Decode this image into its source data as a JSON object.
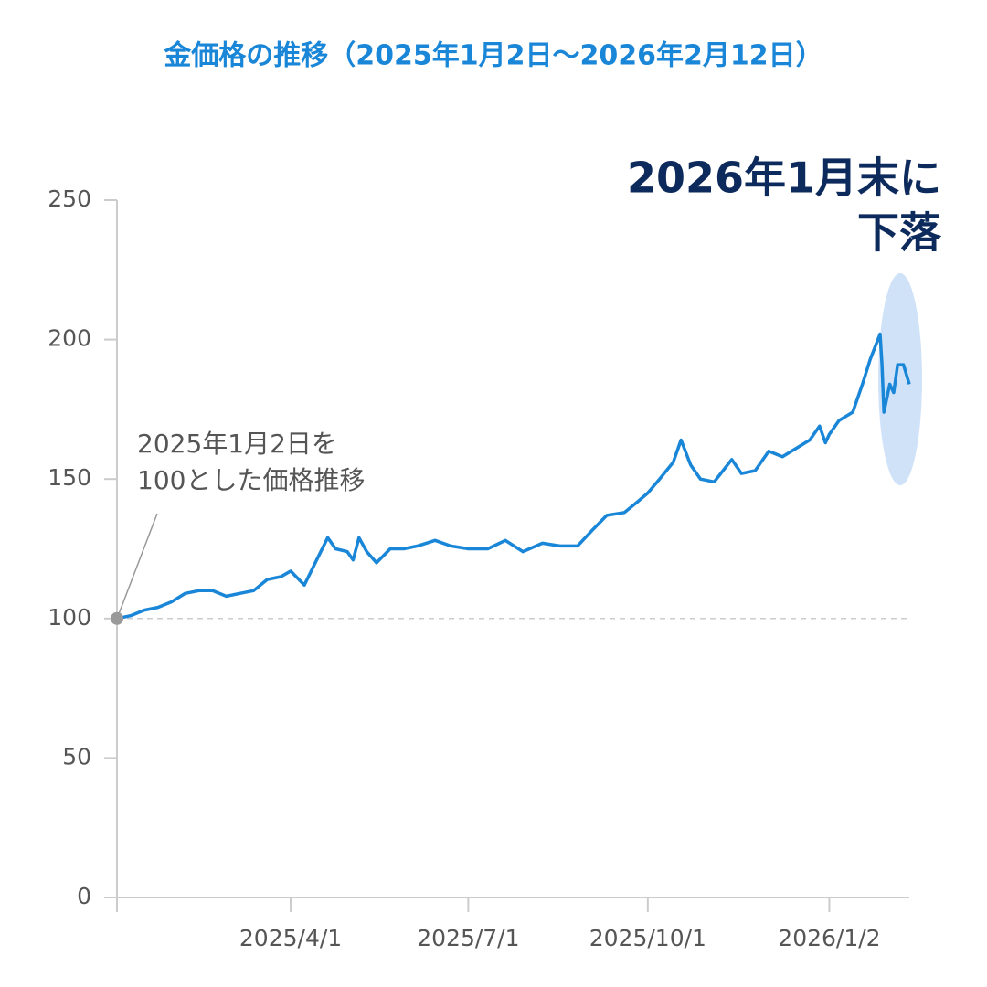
{
  "chart_data": {
    "type": "line",
    "title": "金価格の推移（2025年1月2日～2026年2月12日）",
    "annotation": [
      "2026年1月末に",
      "下落"
    ],
    "baseline_note": [
      "2025年1月2日を",
      "100とした価格推移"
    ],
    "baseline": 100,
    "x": [
      "2025/1/2",
      "2025/1/9",
      "2025/1/16",
      "2025/1/23",
      "2025/1/30",
      "2025/2/6",
      "2025/2/13",
      "2025/2/20",
      "2025/2/27",
      "2025/3/6",
      "2025/3/13",
      "2025/3/20",
      "2025/3/27",
      "2025/4/1",
      "2025/4/8",
      "2025/4/15",
      "2025/4/20",
      "2025/4/24",
      "2025/4/30",
      "2025/5/3",
      "2025/5/6",
      "2025/5/10",
      "2025/5/15",
      "2025/5/22",
      "2025/5/29",
      "2025/6/5",
      "2025/6/14",
      "2025/6/22",
      "2025/7/1",
      "2025/7/11",
      "2025/7/20",
      "2025/7/29",
      "2025/8/8",
      "2025/8/17",
      "2025/8/26",
      "2025/9/3",
      "2025/9/10",
      "2025/9/19",
      "2025/9/26",
      "2025/10/1",
      "2025/10/7",
      "2025/10/14",
      "2025/10/18",
      "2025/10/23",
      "2025/10/28",
      "2025/11/4",
      "2025/11/13",
      "2025/11/18",
      "2025/11/25",
      "2025/12/2",
      "2025/12/9",
      "2025/12/16",
      "2025/12/23",
      "2025/12/28",
      "2025/12/31",
      "2026/1/2",
      "2026/1/7",
      "2026/1/14",
      "2026/1/19",
      "2026/1/23",
      "2026/1/28",
      "2026/1/29",
      "2026/1/30",
      "2026/2/2",
      "2026/2/4",
      "2026/2/6",
      "2026/2/9",
      "2026/2/12"
    ],
    "series": [
      {
        "name": "金価格",
        "color": "#1a86d8",
        "values": [
          100,
          101,
          103,
          104,
          106,
          109,
          110,
          110,
          108,
          109,
          110,
          114,
          115,
          117,
          112,
          122,
          129,
          125,
          124,
          121,
          129,
          124,
          120,
          125,
          125,
          126,
          128,
          126,
          125,
          125,
          128,
          124,
          127,
          126,
          126,
          132,
          137,
          138,
          142,
          145,
          150,
          156,
          164,
          155,
          150,
          149,
          157,
          152,
          153,
          160,
          158,
          161,
          164,
          169,
          163,
          166,
          171,
          174,
          184,
          193,
          202,
          191,
          174,
          184,
          181,
          191,
          191,
          184
        ]
      }
    ],
    "xlim": [
      "2025/1/2",
      "2026/2/12"
    ],
    "xticks": [
      "2025/4/1",
      "2025/7/1",
      "2025/10/1",
      "2026/1/2"
    ],
    "ylim": [
      0,
      250
    ],
    "yticks": [
      0,
      50,
      100,
      150,
      200,
      250
    ]
  }
}
